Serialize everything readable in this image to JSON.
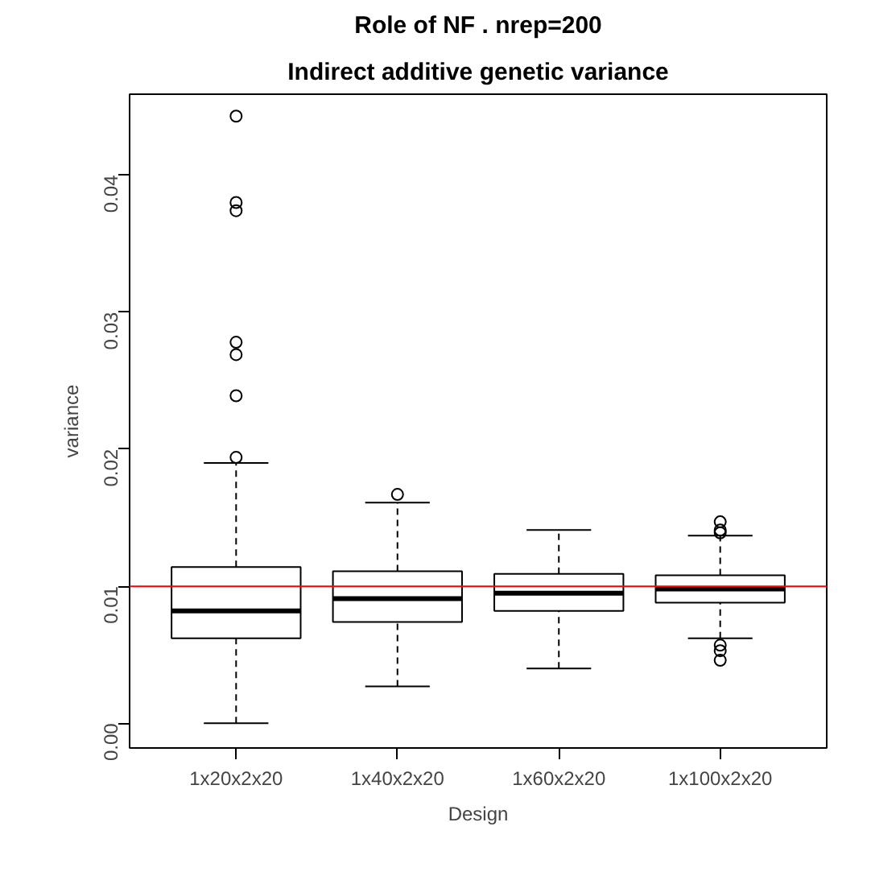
{
  "chart_data": {
    "type": "box",
    "title": "Role of NF . nrep=200",
    "subtitle": "Indirect additive genetic variance",
    "xlabel": "Design",
    "ylabel": "variance",
    "categories": [
      "1x20x2x20",
      "1x40x2x20",
      "1x60x2x20",
      "1x100x2x20"
    ],
    "boxes": [
      {
        "low": 0.0,
        "q1": 0.0062,
        "median": 0.0082,
        "q3": 0.0114,
        "high": 0.019,
        "outliers": [
          0.0443,
          0.038,
          0.0374,
          0.0278,
          0.0269,
          0.0239,
          0.0194
        ]
      },
      {
        "low": 0.0027,
        "q1": 0.0074,
        "median": 0.0091,
        "q3": 0.0111,
        "high": 0.0161,
        "outliers": [
          0.0167
        ]
      },
      {
        "low": 0.004,
        "q1": 0.0082,
        "median": 0.0095,
        "q3": 0.0109,
        "high": 0.0141
      },
      {
        "low": 0.0062,
        "q1": 0.0088,
        "median": 0.0098,
        "q3": 0.0108,
        "high": 0.0137,
        "outliers": [
          0.0147,
          0.0141,
          0.0139,
          0.0057,
          0.0053,
          0.0046
        ]
      }
    ],
    "ylim": [
      -0.0018,
      0.0459
    ],
    "yticks": [
      {
        "value": 0,
        "label": "0.00"
      },
      {
        "value": 0.01,
        "label": "0.01"
      },
      {
        "value": 0.02,
        "label": "0.02"
      },
      {
        "value": 0.03,
        "label": "0.03"
      },
      {
        "value": 0.04,
        "label": "0.04"
      }
    ],
    "ref_lines": [
      {
        "axis": "y",
        "value": 0.01,
        "color": "#ff0000"
      }
    ],
    "grid": false
  }
}
